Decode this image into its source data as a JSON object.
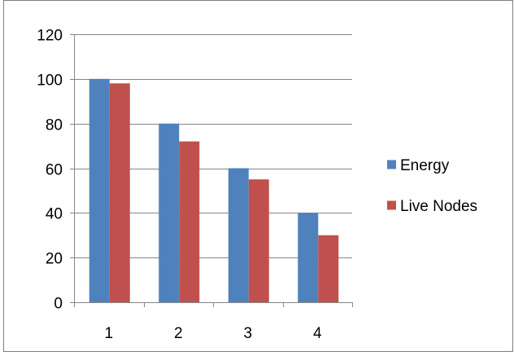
{
  "chart_data": {
    "type": "bar",
    "title": "",
    "xlabel": "",
    "ylabel": "",
    "categories": [
      "1",
      "2",
      "3",
      "4"
    ],
    "series": [
      {
        "name": "Energy",
        "values": [
          100,
          80,
          60,
          40
        ],
        "color": "#4F81BD"
      },
      {
        "name": "Live Nodes",
        "values": [
          98,
          72,
          55,
          30
        ],
        "color": "#C0504D"
      }
    ],
    "ylim": [
      0,
      120
    ],
    "yticks": [
      "0",
      "20",
      "40",
      "60",
      "80",
      "100",
      "120"
    ],
    "grid": "horizontal",
    "legend_position": "right"
  },
  "colors": {
    "axis": "#868686",
    "gridline": "#868686",
    "frame": "#7f7f7f"
  }
}
